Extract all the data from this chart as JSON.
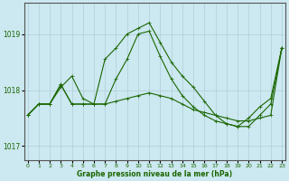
{
  "hours": [
    0,
    1,
    2,
    3,
    4,
    5,
    6,
    7,
    8,
    9,
    10,
    11,
    12,
    13,
    14,
    15,
    16,
    17,
    18,
    19,
    20,
    21,
    22,
    23
  ],
  "line1": [
    1017.55,
    1017.75,
    1017.75,
    1018.1,
    1017.75,
    1017.75,
    1017.75,
    1017.75,
    1018.2,
    1018.55,
    1019.0,
    1019.05,
    1018.6,
    1018.2,
    1017.9,
    1017.7,
    1017.55,
    1017.45,
    1017.4,
    1017.35,
    1017.5,
    1017.7,
    1017.85,
    1018.75
  ],
  "line2": [
    1017.55,
    1017.75,
    1017.75,
    1018.1,
    1017.75,
    1017.75,
    1017.75,
    1017.75,
    1017.8,
    1017.85,
    1017.9,
    1017.95,
    1017.9,
    1017.85,
    1017.75,
    1017.65,
    1017.6,
    1017.55,
    1017.5,
    1017.45,
    1017.45,
    1017.5,
    1017.55,
    1018.75
  ],
  "line3": [
    1017.55,
    1017.75,
    1017.75,
    1018.05,
    1018.25,
    1017.85,
    1017.75,
    1018.55,
    1018.75,
    1019.0,
    1019.1,
    1019.2,
    1018.85,
    1018.5,
    1018.25,
    1018.05,
    1017.8,
    1017.55,
    1017.4,
    1017.35,
    1017.35,
    1017.55,
    1017.75,
    1018.75
  ],
  "bg_color": "#cce8f0",
  "line_color": "#1a6600",
  "grid_color": "#b0cdd8",
  "title": "Graphe pression niveau de la mer (hPa)",
  "ylim": [
    1016.75,
    1019.55
  ],
  "yticks": [
    1017,
    1018,
    1019
  ],
  "xticks": [
    0,
    1,
    2,
    3,
    4,
    5,
    6,
    7,
    8,
    9,
    10,
    11,
    12,
    13,
    14,
    15,
    16,
    17,
    18,
    19,
    20,
    21,
    22,
    23
  ]
}
